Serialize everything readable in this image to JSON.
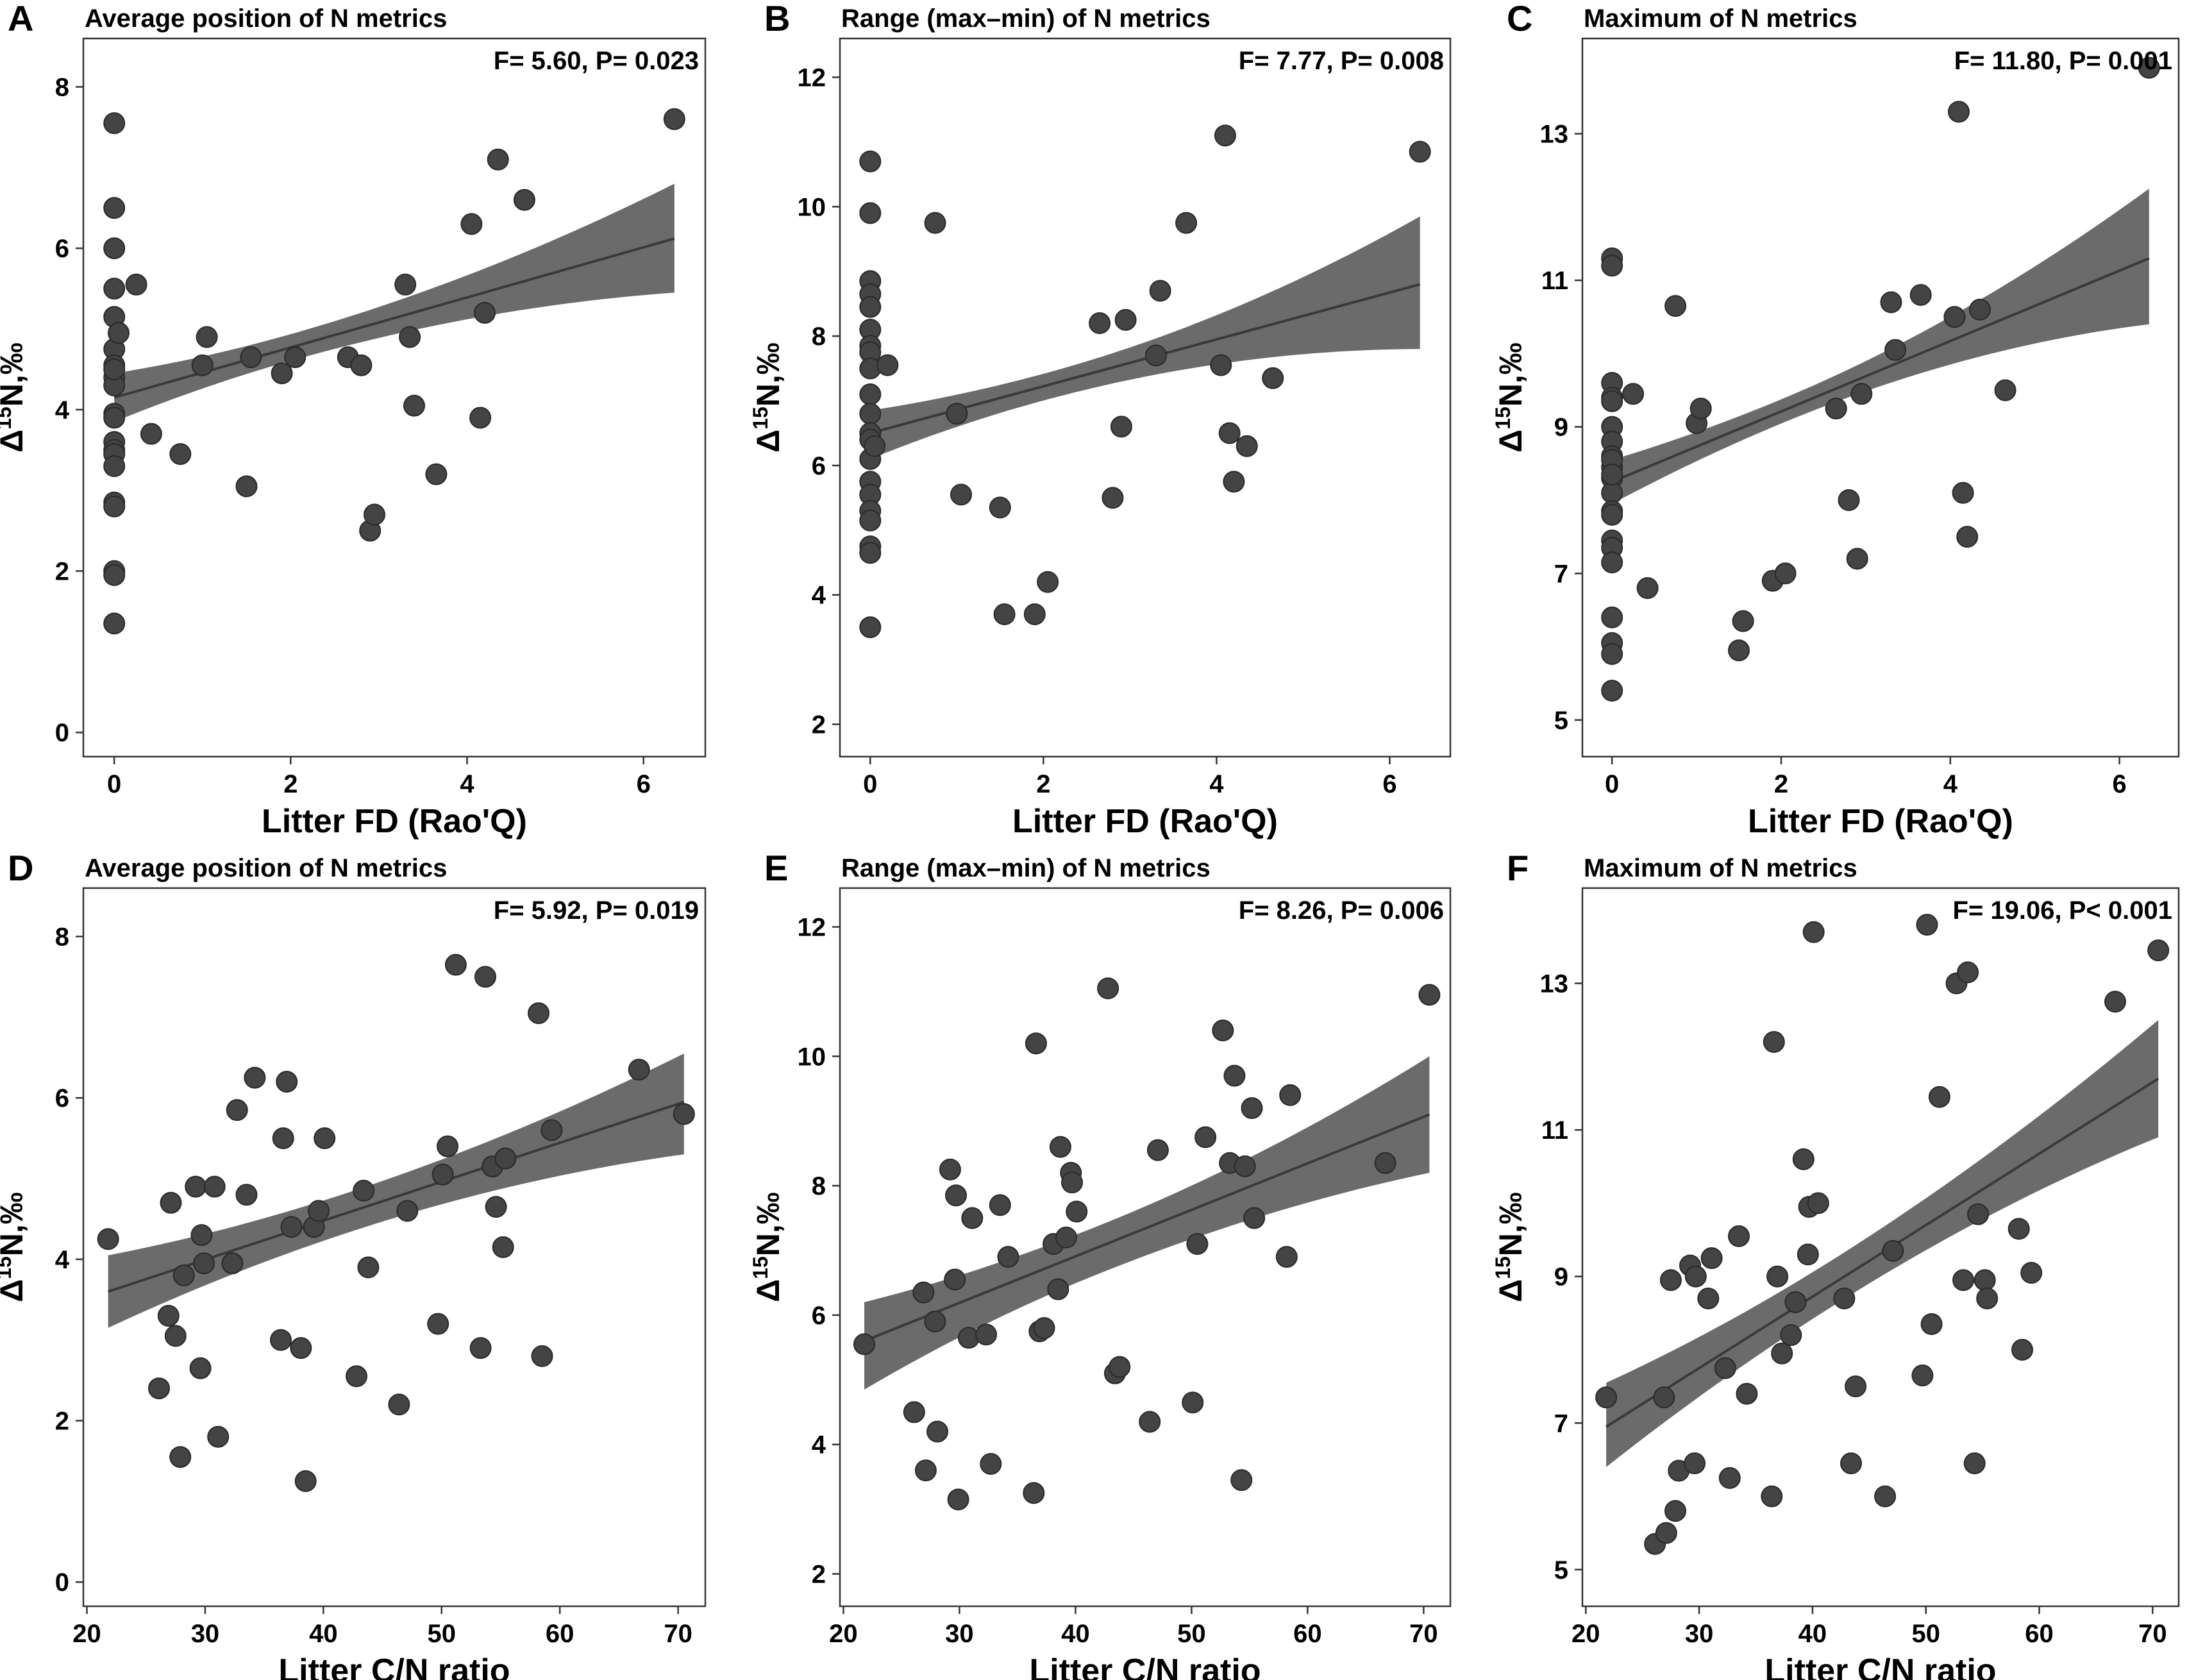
{
  "ylabel": {
    "prefix": "Δ",
    "sup": "15",
    "rest": "N,‰"
  },
  "chart_data": [
    {
      "panel": "A",
      "type": "scatter",
      "title": "Average position of N metrics",
      "stats": "F= 5.60, P= 0.023",
      "xlabel": "Litter FD (Rao'Q)",
      "xlim": [
        -0.35,
        6.7
      ],
      "ylim": [
        -0.3,
        8.6
      ],
      "xticks": [
        0,
        2,
        4,
        6
      ],
      "yticks": [
        0,
        2,
        4,
        6,
        8
      ],
      "fit": {
        "x": [
          0,
          6.35
        ],
        "y": [
          4.15,
          6.12
        ],
        "lower_end": [
          3.85,
          5.45
        ],
        "upper_end": [
          4.45,
          6.8
        ],
        "x_center": 2.0
      },
      "x": [
        0,
        0,
        0,
        0,
        0,
        0,
        0,
        0,
        0,
        0,
        0,
        0,
        0,
        0,
        0,
        0,
        0,
        0,
        0,
        0,
        0,
        0.05,
        0.25,
        0.42,
        0.75,
        1.0,
        1.05,
        1.5,
        1.55,
        1.9,
        2.05,
        2.65,
        2.8,
        2.9,
        2.95,
        3.3,
        3.35,
        3.4,
        3.65,
        4.05,
        4.15,
        4.2,
        4.35,
        4.65,
        6.35
      ],
      "y": [
        7.55,
        6.5,
        6.0,
        5.5,
        5.15,
        4.75,
        4.55,
        4.4,
        4.3,
        3.95,
        3.9,
        3.6,
        3.5,
        3.45,
        3.3,
        2.85,
        2.8,
        2.0,
        1.95,
        1.35,
        4.5,
        4.95,
        5.55,
        3.7,
        3.45,
        4.55,
        4.9,
        3.05,
        4.65,
        4.45,
        4.65,
        4.65,
        4.55,
        2.5,
        2.7,
        5.55,
        4.9,
        4.05,
        3.2,
        6.3,
        3.9,
        5.2,
        7.1,
        6.6,
        7.6
      ]
    },
    {
      "panel": "B",
      "type": "scatter",
      "title": "Range (max–min) of N metrics",
      "stats": "F= 7.77, P= 0.008",
      "xlabel": "Litter FD (Rao'Q)",
      "xlim": [
        -0.35,
        6.7
      ],
      "ylim": [
        1.5,
        12.6
      ],
      "xticks": [
        0,
        2,
        4,
        6
      ],
      "yticks": [
        2,
        4,
        6,
        8,
        10,
        12
      ],
      "fit": {
        "x": [
          0,
          6.35
        ],
        "y": [
          6.5,
          8.8
        ],
        "lower_end": [
          6.1,
          7.8
        ],
        "upper_end": [
          6.85,
          9.85
        ],
        "x_center": 2.0
      },
      "x": [
        0,
        0,
        0,
        0,
        0,
        0,
        0,
        0,
        0,
        0,
        0,
        0,
        0,
        0,
        0,
        0,
        0,
        0,
        0,
        0,
        0,
        0.05,
        0.2,
        0.75,
        1.0,
        1.05,
        1.5,
        1.55,
        1.9,
        2.05,
        2.65,
        2.8,
        2.9,
        2.95,
        3.3,
        3.35,
        3.65,
        4.05,
        4.1,
        4.15,
        4.2,
        4.35,
        4.65,
        6.35
      ],
      "y": [
        10.7,
        9.9,
        8.85,
        8.65,
        8.45,
        8.1,
        7.85,
        7.75,
        7.5,
        7.1,
        6.8,
        6.5,
        6.4,
        6.1,
        5.75,
        5.55,
        5.3,
        5.15,
        4.75,
        4.65,
        3.5,
        6.3,
        7.55,
        9.75,
        6.8,
        5.55,
        5.35,
        3.7,
        3.7,
        4.2,
        8.2,
        5.5,
        6.6,
        8.25,
        7.7,
        8.7,
        9.75,
        7.55,
        11.1,
        6.5,
        5.75,
        6.3,
        7.35,
        10.85
      ]
    },
    {
      "panel": "C",
      "type": "scatter",
      "title": "Maximum of N metrics",
      "stats": "F= 11.80, P= 0.001",
      "xlabel": "Litter FD (Rao'Q)",
      "xlim": [
        -0.35,
        6.7
      ],
      "ylim": [
        4.5,
        14.3
      ],
      "xticks": [
        0,
        2,
        4,
        6
      ],
      "yticks": [
        5,
        7,
        9,
        11,
        13
      ],
      "fit": {
        "x": [
          0,
          6.35
        ],
        "y": [
          8.25,
          11.3
        ],
        "lower_end": [
          7.95,
          10.4
        ],
        "upper_end": [
          8.55,
          12.25
        ],
        "x_center": 2.0
      },
      "x": [
        0,
        0,
        0,
        0,
        0,
        0,
        0,
        0,
        0,
        0,
        0,
        0,
        0,
        0,
        0,
        0,
        0,
        0,
        0,
        0,
        0,
        0,
        0.25,
        0.42,
        0.75,
        1.0,
        1.05,
        1.5,
        1.55,
        1.9,
        2.05,
        2.65,
        2.8,
        2.9,
        2.95,
        3.3,
        3.35,
        3.65,
        4.05,
        4.1,
        4.15,
        4.2,
        4.35,
        4.65,
        6.35
      ],
      "y": [
        11.3,
        11.2,
        9.6,
        9.4,
        9.0,
        8.8,
        8.6,
        8.45,
        8.3,
        8.1,
        7.85,
        7.8,
        7.45,
        7.35,
        7.15,
        6.4,
        6.05,
        5.9,
        5.4,
        8.55,
        8.35,
        9.35,
        9.45,
        6.8,
        10.65,
        9.05,
        9.25,
        5.95,
        6.35,
        6.9,
        7.0,
        9.25,
        8.0,
        7.2,
        9.45,
        10.7,
        10.05,
        10.8,
        10.5,
        13.3,
        8.1,
        7.5,
        10.6,
        9.5,
        13.9
      ]
    },
    {
      "panel": "D",
      "type": "scatter",
      "title": "Average position of N metrics",
      "stats": "F= 5.92, P= 0.019",
      "xlabel": "Litter C/N ratio",
      "xlim": [
        19.7,
        72.3
      ],
      "ylim": [
        -0.3,
        8.6
      ],
      "xticks": [
        20,
        30,
        40,
        50,
        60,
        70
      ],
      "yticks": [
        0,
        2,
        4,
        6,
        8
      ],
      "fit": {
        "x": [
          21.8,
          70.5
        ],
        "y": [
          3.6,
          5.95
        ],
        "lower_end": [
          3.15,
          5.3
        ],
        "upper_end": [
          4.05,
          6.55
        ],
        "x_center": 42.0
      },
      "x": [
        21.8,
        26.1,
        26.9,
        27.1,
        27.5,
        27.9,
        28.2,
        29.2,
        29.6,
        29.7,
        29.9,
        30.8,
        31.1,
        32.3,
        32.7,
        33.5,
        34.2,
        36.4,
        36.6,
        36.9,
        37.3,
        38.1,
        38.5,
        39.2,
        39.6,
        40.1,
        42.8,
        43.4,
        43.8,
        46.4,
        47.1,
        49.7,
        50.1,
        50.5,
        51.2,
        53.3,
        53.7,
        54.3,
        54.6,
        55.2,
        55.4,
        58.2,
        58.5,
        59.3,
        66.7,
        70.5
      ],
      "y": [
        4.25,
        2.4,
        3.3,
        4.7,
        3.05,
        1.55,
        3.8,
        4.9,
        2.65,
        4.3,
        3.95,
        4.9,
        1.8,
        3.95,
        5.85,
        4.8,
        6.25,
        3.0,
        5.5,
        6.2,
        4.4,
        2.9,
        1.25,
        4.4,
        4.6,
        5.5,
        2.55,
        4.85,
        3.9,
        2.2,
        4.6,
        3.2,
        5.05,
        5.4,
        7.65,
        2.9,
        7.5,
        5.15,
        4.65,
        4.15,
        5.25,
        7.05,
        2.8,
        5.6,
        6.35,
        5.8
      ]
    },
    {
      "panel": "E",
      "type": "scatter",
      "title": "Range (max–min) of N metrics",
      "stats": "F= 8.26, P= 0.006",
      "xlabel": "Litter C/N ratio",
      "xlim": [
        19.7,
        72.3
      ],
      "ylim": [
        1.5,
        12.6
      ],
      "xticks": [
        20,
        30,
        40,
        50,
        60,
        70
      ],
      "yticks": [
        2,
        4,
        6,
        8,
        10,
        12
      ],
      "fit": {
        "x": [
          21.8,
          70.5
        ],
        "y": [
          5.6,
          9.1
        ],
        "lower_end": [
          4.85,
          8.2
        ],
        "upper_end": [
          6.2,
          10.0
        ],
        "x_center": 42.0
      },
      "x": [
        21.8,
        26.1,
        26.9,
        27.1,
        27.9,
        28.1,
        29.2,
        29.6,
        29.7,
        29.9,
        30.8,
        31.1,
        32.3,
        32.7,
        33.5,
        34.2,
        36.4,
        36.6,
        36.9,
        37.3,
        38.1,
        38.5,
        38.7,
        39.2,
        39.6,
        39.7,
        40.1,
        42.8,
        43.4,
        43.8,
        46.4,
        47.1,
        50.1,
        50.5,
        51.2,
        52.7,
        53.3,
        53.7,
        54.3,
        54.6,
        55.2,
        55.4,
        58.2,
        58.5,
        66.7,
        70.5
      ],
      "y": [
        5.55,
        4.5,
        6.35,
        3.6,
        5.9,
        4.2,
        8.25,
        6.55,
        7.85,
        3.15,
        5.65,
        7.5,
        5.7,
        3.7,
        7.7,
        6.9,
        3.25,
        10.2,
        5.75,
        5.8,
        7.1,
        6.4,
        8.6,
        7.2,
        8.2,
        8.05,
        7.6,
        11.05,
        5.1,
        5.2,
        4.35,
        8.55,
        4.65,
        7.1,
        8.75,
        10.4,
        8.35,
        9.7,
        3.45,
        8.3,
        9.2,
        7.5,
        6.9,
        9.4,
        8.35,
        10.95
      ]
    },
    {
      "panel": "F",
      "type": "scatter",
      "title": "Maximum of N metrics",
      "stats": "F= 19.06, P< 0.001",
      "xlabel": "Litter C/N ratio",
      "xlim": [
        19.7,
        72.3
      ],
      "ylim": [
        4.5,
        14.3
      ],
      "xticks": [
        20,
        30,
        40,
        50,
        60,
        70
      ],
      "yticks": [
        5,
        7,
        9,
        11,
        13
      ],
      "fit": {
        "x": [
          21.8,
          70.5
        ],
        "y": [
          6.95,
          11.7
        ],
        "lower_end": [
          6.4,
          10.9
        ],
        "upper_end": [
          7.55,
          12.5
        ],
        "x_center": 42.0
      },
      "x": [
        21.8,
        26.1,
        26.9,
        27.1,
        27.5,
        27.9,
        28.2,
        29.2,
        29.6,
        29.7,
        30.8,
        31.1,
        32.3,
        32.7,
        33.5,
        34.2,
        36.4,
        36.6,
        36.9,
        37.3,
        38.1,
        38.5,
        39.2,
        39.6,
        39.7,
        40.1,
        40.5,
        42.8,
        43.4,
        43.8,
        46.4,
        47.1,
        49.7,
        50.1,
        50.5,
        51.2,
        52.7,
        53.3,
        53.7,
        54.3,
        54.6,
        55.2,
        55.4,
        58.2,
        58.5,
        59.3,
        66.7,
        70.5
      ],
      "y": [
        7.35,
        5.35,
        7.35,
        5.5,
        8.95,
        5.8,
        6.35,
        9.15,
        6.45,
        9.0,
        8.7,
        9.25,
        7.75,
        6.25,
        9.55,
        7.4,
        6.0,
        12.2,
        9.0,
        7.95,
        8.2,
        8.65,
        10.6,
        9.3,
        9.95,
        13.7,
        10.0,
        8.7,
        6.45,
        7.5,
        6.0,
        9.35,
        7.65,
        13.8,
        8.35,
        11.45,
        13.0,
        8.95,
        13.15,
        6.45,
        9.85,
        8.95,
        8.7,
        9.65,
        8.0,
        9.05,
        12.75,
        13.45
      ]
    }
  ]
}
